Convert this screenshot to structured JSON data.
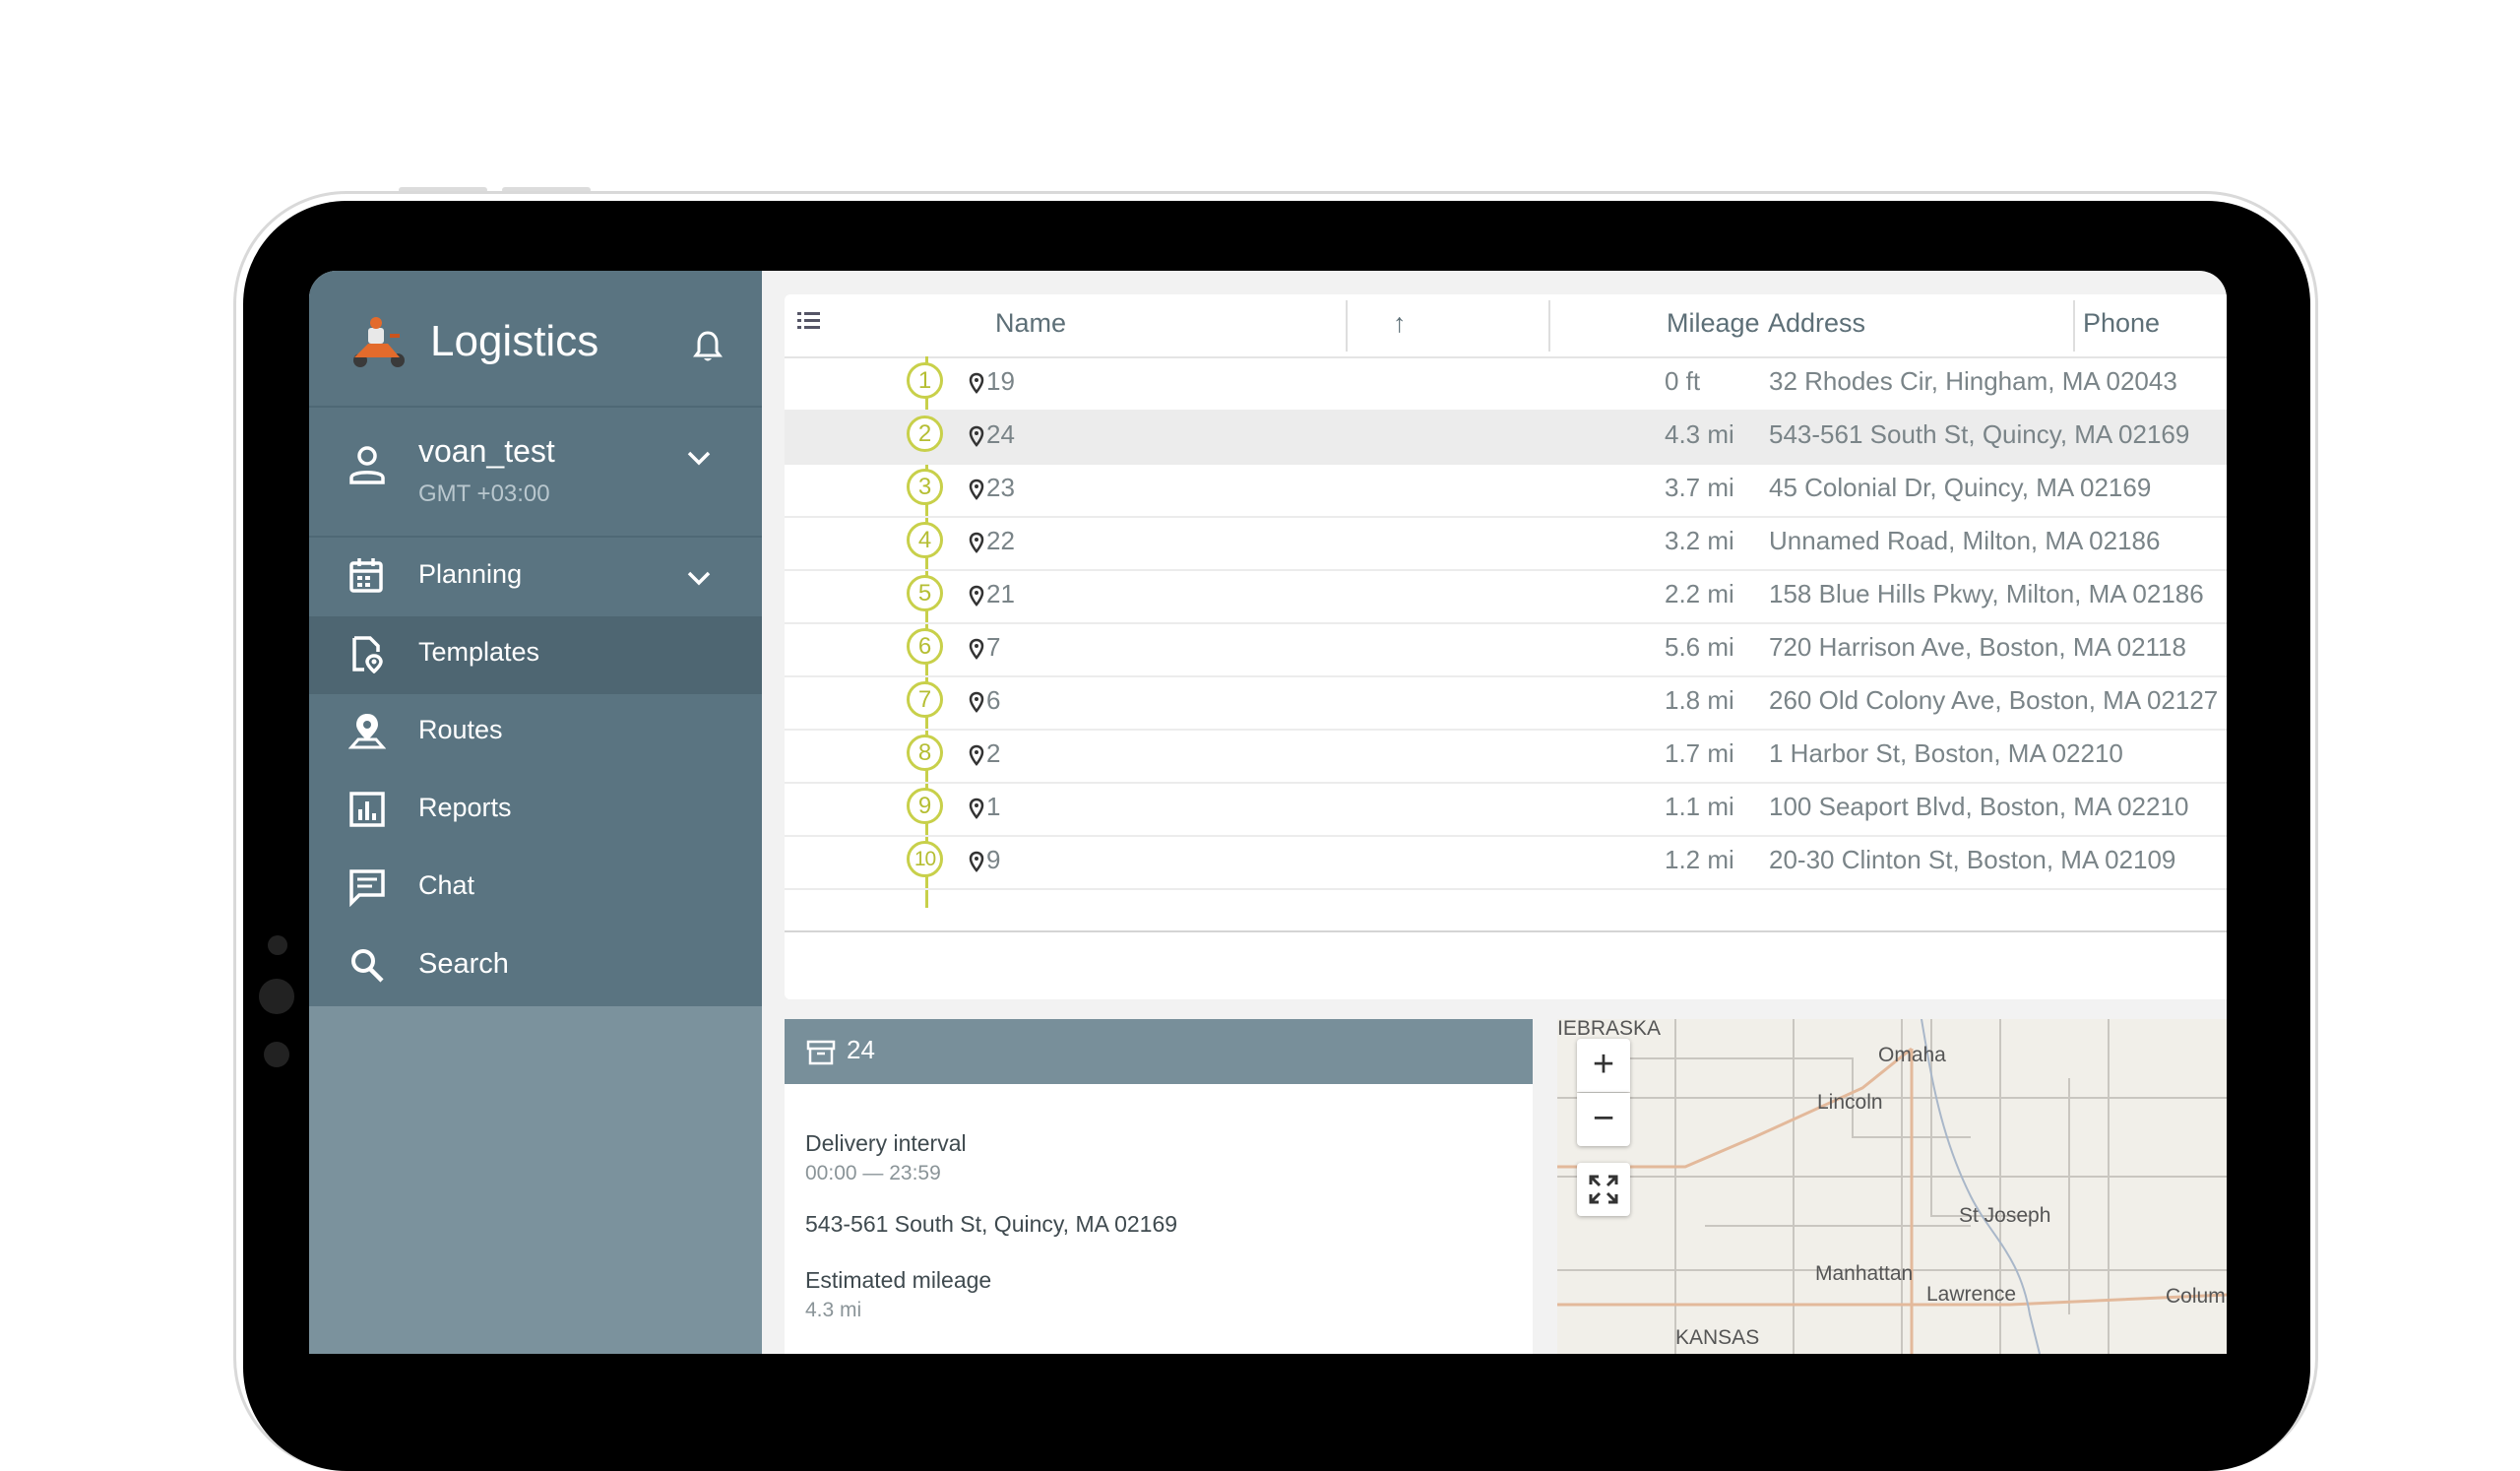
{
  "app": {
    "title": "Logistics",
    "logo_icon": "scooter-courier-icon",
    "bell_icon": "bell-icon"
  },
  "user": {
    "name": "voan_test",
    "timezone": "GMT +03:00"
  },
  "nav": {
    "items": [
      {
        "label": "Planning",
        "icon": "calendar-icon",
        "expandable": true
      },
      {
        "label": "Templates",
        "icon": "template-pin-icon",
        "active": true
      },
      {
        "label": "Routes",
        "icon": "route-pin-icon"
      },
      {
        "label": "Reports",
        "icon": "bar-chart-icon"
      },
      {
        "label": "Chat",
        "icon": "chat-icon"
      },
      {
        "label": "Search",
        "icon": "search-icon"
      }
    ]
  },
  "table": {
    "columns": [
      "Name",
      "Mileage",
      "Address",
      "Phone"
    ],
    "sort_indicator": "↑",
    "rows": [
      {
        "seq": "1",
        "name": "19",
        "mileage": "0 ft",
        "address": "32 Rhodes Cir, Hingham, MA 02043"
      },
      {
        "seq": "2",
        "name": "24",
        "mileage": "4.3 mi",
        "address": "543-561 South St, Quincy, MA 02169",
        "selected": true
      },
      {
        "seq": "3",
        "name": "23",
        "mileage": "3.7 mi",
        "address": "45 Colonial Dr, Quincy, MA 02169"
      },
      {
        "seq": "4",
        "name": "22",
        "mileage": "3.2 mi",
        "address": "Unnamed Road, Milton, MA 02186"
      },
      {
        "seq": "5",
        "name": "21",
        "mileage": "2.2 mi",
        "address": "158 Blue Hills Pkwy, Milton, MA 02186"
      },
      {
        "seq": "6",
        "name": "7",
        "mileage": "5.6 mi",
        "address": "720 Harrison Ave, Boston, MA 02118"
      },
      {
        "seq": "7",
        "name": "6",
        "mileage": "1.8 mi",
        "address": "260 Old Colony Ave, Boston, MA 02127"
      },
      {
        "seq": "8",
        "name": "2",
        "mileage": "1.7 mi",
        "address": "1 Harbor St, Boston, MA 02210"
      },
      {
        "seq": "9",
        "name": "1",
        "mileage": "1.1 mi",
        "address": "100 Seaport Blvd, Boston, MA 02210"
      },
      {
        "seq": "10",
        "name": "9",
        "mileage": "1.2 mi",
        "address": "20-30 Clinton St, Boston, MA 02109"
      }
    ]
  },
  "detail": {
    "title": "24",
    "delivery_interval_label": "Delivery interval",
    "delivery_interval_value": "00:00 — 23:59",
    "address": "543-561 South St, Quincy, MA 02169",
    "estimated_mileage_label": "Estimated mileage",
    "estimated_mileage_value": "4.3 mi"
  },
  "map": {
    "labels": [
      "IEBRASKA",
      "Omaha",
      "Lincoln",
      "St Joseph",
      "Manhattan",
      "Lawrence",
      "Columb",
      "KANSAS"
    ],
    "zoom_in": "+",
    "zoom_out": "−",
    "more": "..."
  }
}
